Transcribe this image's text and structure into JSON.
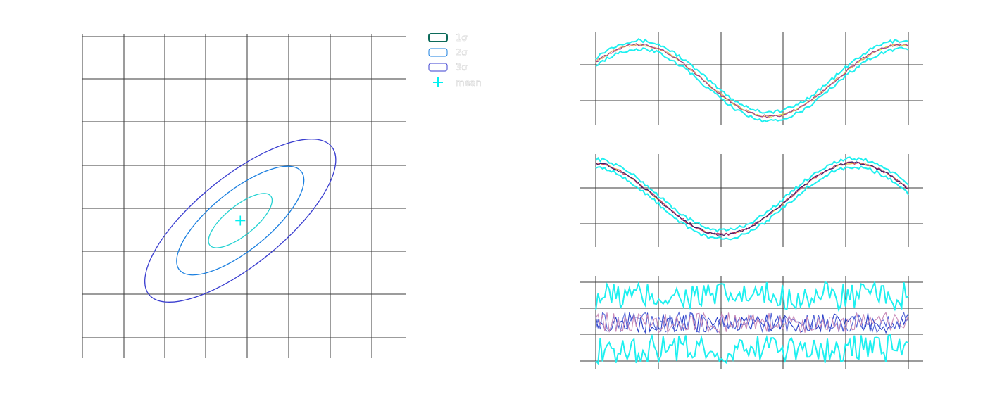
{
  "legend": {
    "items": [
      {
        "label": "1σ",
        "color": "#24d2d2",
        "type": "ellipse-swatch"
      },
      {
        "label": "2σ",
        "color": "#1a7fe0",
        "type": "ellipse-swatch"
      },
      {
        "label": "3σ",
        "color": "#3b3fd0",
        "type": "ellipse-swatch"
      },
      {
        "label": "mean",
        "color": "#00f0f0",
        "type": "marker"
      }
    ]
  },
  "chart_data": [
    {
      "type": "scatter",
      "title": "",
      "xlabel": "",
      "ylabel": "",
      "grid": true,
      "xlim": [
        0,
        8
      ],
      "ylim": [
        0,
        8
      ],
      "mean": {
        "x": 3.9,
        "y": 3.4
      },
      "covariance": {
        "sx": 1.18,
        "sy": 1.2,
        "angle_deg": 39
      },
      "ellipses": [
        {
          "name": "1σ",
          "k": 1,
          "color": "#24d2d2"
        },
        {
          "name": "2σ",
          "k": 2,
          "color": "#1a7fe0"
        },
        {
          "name": "3σ",
          "k": 3,
          "color": "#3b3fd0"
        }
      ],
      "mean_marker_color": "#00f0f0",
      "mean_marker": "plus",
      "legend_position": "upper-right-outside"
    },
    {
      "type": "line",
      "xlim": [
        0,
        5
      ],
      "ylim": [
        -1.25,
        1.35
      ],
      "grid": true,
      "signal": "sin",
      "n": 140,
      "noise": 0.05,
      "band_halfwidth": 0.12,
      "series": [
        {
          "role": "band-upper",
          "color": "#1ef0f0"
        },
        {
          "role": "band-lower",
          "color": "#1ef0f0"
        },
        {
          "role": "mean",
          "color": "#d6e84a"
        },
        {
          "role": "sample",
          "color": "#e89a6a"
        },
        {
          "role": "sample",
          "color": "#9a3c8a"
        }
      ]
    },
    {
      "type": "line",
      "xlim": [
        0,
        5
      ],
      "ylim": [
        -1.35,
        1.25
      ],
      "grid": true,
      "signal": "cos",
      "n": 140,
      "noise": 0.05,
      "band_halfwidth": 0.12,
      "series": [
        {
          "role": "band-upper",
          "color": "#1ef0f0"
        },
        {
          "role": "band-lower",
          "color": "#1ef0f0"
        },
        {
          "role": "mean",
          "color": "#e0a83a"
        },
        {
          "role": "sample",
          "color": "#c8326a"
        },
        {
          "role": "sample",
          "color": "#3a1c6a"
        }
      ]
    },
    {
      "type": "line",
      "xlim": [
        0,
        5
      ],
      "ylim": [
        -1.6,
        1.6
      ],
      "grid": true,
      "signal": "noise",
      "n": 140,
      "noise": 0.35,
      "band_halfwidth": 0.9,
      "series": [
        {
          "role": "band-upper",
          "color": "#1ef0f0"
        },
        {
          "role": "band-lower",
          "color": "#1ef0f0"
        },
        {
          "role": "sample",
          "color": "#2a3fc8"
        },
        {
          "role": "sample",
          "color": "#5a6ad8"
        },
        {
          "role": "sample",
          "color": "#c88ab8"
        }
      ]
    }
  ]
}
